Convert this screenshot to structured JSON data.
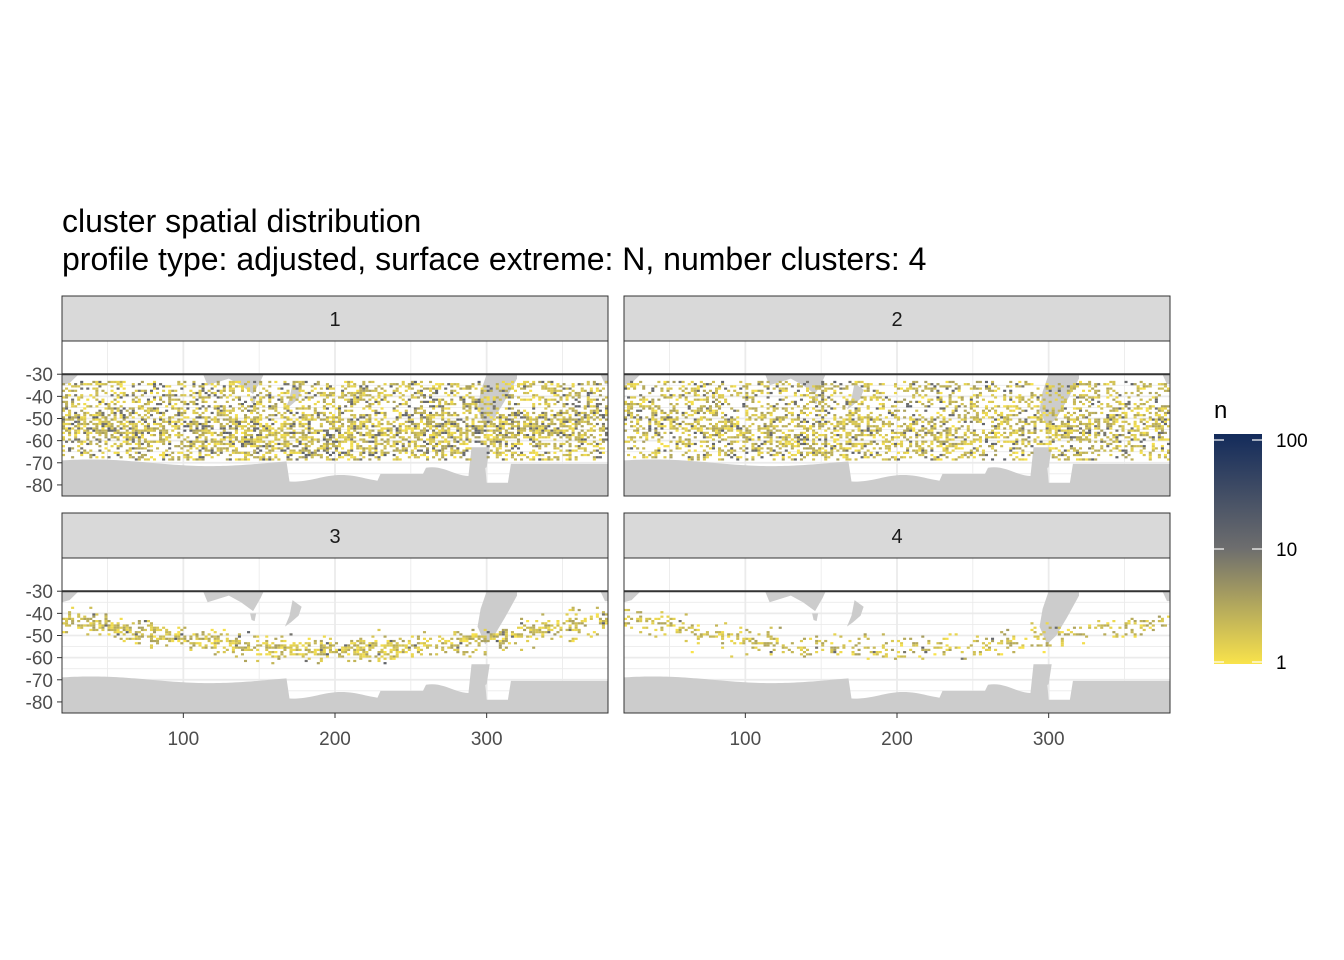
{
  "chart_data": {
    "type": "heatmap",
    "title": "cluster spatial distribution",
    "subtitle": "profile type: adjusted, surface extreme: N, number clusters: 4",
    "xlabel": "",
    "ylabel": "",
    "xlim": [
      20,
      380
    ],
    "ylim": [
      -85,
      -15
    ],
    "x_ticks": [
      100,
      200,
      300
    ],
    "y_ticks": [
      -30,
      -40,
      -50,
      -60,
      -70,
      -80
    ],
    "y_tick_labels": [
      "-30",
      "-40",
      "-50",
      "-60",
      "-70",
      "-80"
    ],
    "x_tick_labels": [
      "100",
      "200",
      "300"
    ],
    "reference_line_lat": -30,
    "facets": [
      {
        "label": "1",
        "density": 0.62,
        "dark_fraction": 0.2,
        "bands": [
          [
            -33,
            -68
          ]
        ]
      },
      {
        "label": "2",
        "density": 0.5,
        "dark_fraction": 0.15,
        "bands": [
          [
            -33,
            -68
          ]
        ]
      },
      {
        "label": "3",
        "density": 0.22,
        "dark_fraction": 0.05,
        "bands": [
          [
            -33,
            -62
          ]
        ]
      },
      {
        "label": "4",
        "density": 0.12,
        "dark_fraction": 0.03,
        "bands": [
          [
            -33,
            -60
          ]
        ]
      }
    ],
    "legend": {
      "title": "n",
      "scale": "log10",
      "breaks": [
        "100",
        "10",
        "1"
      ],
      "break_values": [
        100,
        10,
        1
      ],
      "colors": [
        "#132b5b",
        "#6e6e6e",
        "#f9e34b"
      ]
    },
    "land_color": "#cccccc",
    "panel_background": "#ffffff"
  }
}
